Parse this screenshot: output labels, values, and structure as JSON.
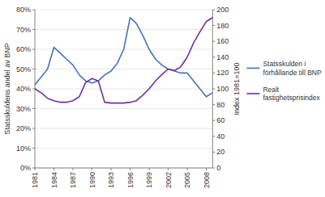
{
  "chart_data": {
    "type": "line",
    "x": [
      1981,
      1982,
      1983,
      1984,
      1985,
      1986,
      1987,
      1988,
      1989,
      1990,
      1991,
      1992,
      1993,
      1994,
      1995,
      1996,
      1997,
      1998,
      1999,
      2000,
      2001,
      2002,
      2003,
      2004,
      2005,
      2006,
      2007,
      2008,
      2009
    ],
    "xlim": [
      1981,
      2009
    ],
    "xticks": [
      1981,
      1984,
      1987,
      1990,
      1993,
      1996,
      1999,
      2002,
      2005,
      2008
    ],
    "ylim": [
      0.0,
      0.8
    ],
    "yticks": [
      {
        "value": 0.0,
        "label": "0%"
      },
      {
        "value": 0.1,
        "label": "10%"
      },
      {
        "value": 0.2,
        "label": "20%"
      },
      {
        "value": 0.3,
        "label": "30%"
      },
      {
        "value": 0.4,
        "label": "40%"
      },
      {
        "value": 0.5,
        "label": "50%"
      },
      {
        "value": 0.6,
        "label": "60%"
      },
      {
        "value": 0.7,
        "label": "70%"
      },
      {
        "value": 0.8,
        "label": "80%"
      }
    ],
    "y2lim": [
      0,
      200
    ],
    "y2ticks": [
      0,
      20,
      40,
      60,
      80,
      100,
      120,
      140,
      160,
      180,
      200
    ],
    "ylabel": "Statsskuldens andel av BNP",
    "y2label": "Index 1981=100",
    "grid": true,
    "legend": "right",
    "series": [
      {
        "name": "Statsskulden i\nförhållande till BNP",
        "color": "#4472C4",
        "values": [
          0.42,
          0.46,
          0.5,
          0.61,
          0.58,
          0.55,
          0.52,
          0.47,
          0.44,
          0.43,
          0.44,
          0.47,
          0.49,
          0.53,
          0.6,
          0.76,
          0.73,
          0.67,
          0.6,
          0.55,
          0.52,
          0.5,
          0.49,
          0.48,
          0.48,
          0.44,
          0.4,
          0.36,
          0.38
        ]
      },
      {
        "name": "Realt\nfastighetsprisindex",
        "color": "#7030A0",
        "axis": "y2",
        "values": [
          100,
          95,
          88,
          85,
          83,
          83,
          85,
          90,
          108,
          113,
          110,
          83,
          82,
          82,
          82,
          83,
          85,
          92,
          100,
          110,
          118,
          125,
          123,
          128,
          140,
          158,
          172,
          185,
          190
        ]
      }
    ]
  }
}
